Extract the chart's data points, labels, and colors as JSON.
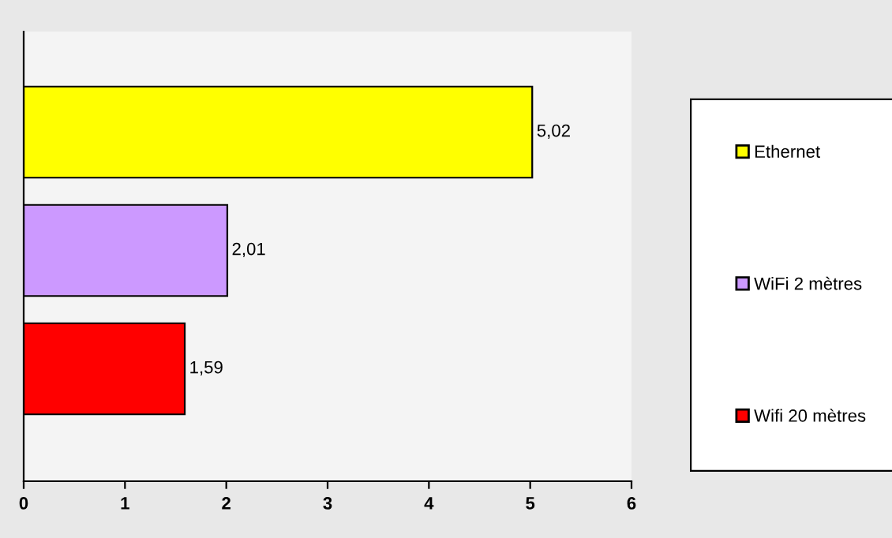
{
  "chart_data": {
    "type": "bar",
    "orientation": "horizontal",
    "categories": [
      null,
      null,
      null
    ],
    "series": [
      {
        "name": "Ethernet",
        "color": "#ffff00",
        "values": [
          5.02,
          null,
          null
        ],
        "value_labels": [
          "5,02",
          null,
          null
        ]
      },
      {
        "name": "WiFi 2 mètres",
        "color": "#cc99ff",
        "values": [
          null,
          2.01,
          null
        ],
        "value_labels": [
          null,
          "2,01",
          null
        ]
      },
      {
        "name": "Wifi 20 mètres",
        "color": "#ff0000",
        "values": [
          null,
          null,
          1.59
        ],
        "value_labels": [
          null,
          null,
          "1,59"
        ]
      }
    ],
    "xlim": [
      0,
      6
    ],
    "xticks": [
      0,
      1,
      2,
      3,
      4,
      5,
      6
    ],
    "grid": false,
    "legend": "right"
  }
}
